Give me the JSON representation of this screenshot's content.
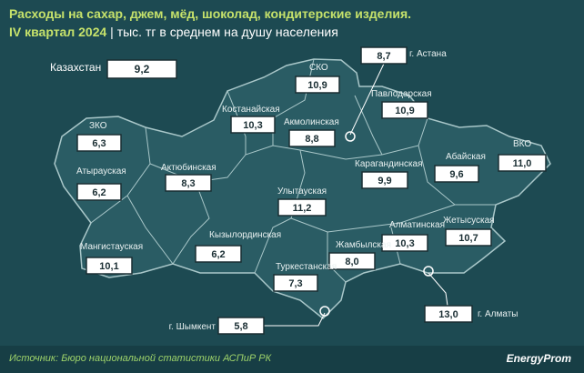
{
  "header": {
    "title": "Расходы на сахар, джем, мёд, шоколад, кондитерские изделия.",
    "period": "IV квартал 2024",
    "unit": "| тыс. тг в среднем на душу населения"
  },
  "regions": [
    {
      "name": "Казахстан",
      "value": "9,2"
    },
    {
      "name": "СКО",
      "value": "10,9"
    },
    {
      "name": "г. Астана",
      "value": "8,7"
    },
    {
      "name": "Павлодарская",
      "value": "10,9"
    },
    {
      "name": "Костанайская",
      "value": "10,3"
    },
    {
      "name": "Акмолинская",
      "value": "8,8"
    },
    {
      "name": "ЗКО",
      "value": "6,3"
    },
    {
      "name": "ВКО",
      "value": "11,0"
    },
    {
      "name": "Абайская",
      "value": "9,6"
    },
    {
      "name": "Карагандинская",
      "value": "9,9"
    },
    {
      "name": "Атырауская",
      "value": "6,2"
    },
    {
      "name": "Актюбинская",
      "value": "8,3"
    },
    {
      "name": "Улытауская",
      "value": "11,2"
    },
    {
      "name": "Жетысуская",
      "value": "10,7"
    },
    {
      "name": "Алматинская",
      "value": "10,3"
    },
    {
      "name": "Кызылординская",
      "value": "6,2"
    },
    {
      "name": "Мангистауская",
      "value": "10,1"
    },
    {
      "name": "Жамбылская",
      "value": "8,0"
    },
    {
      "name": "Туркестанская",
      "value": "7,3"
    },
    {
      "name": "г. Алматы",
      "value": "13,0"
    },
    {
      "name": "г. Шымкент",
      "value": "5,8"
    }
  ],
  "footer": {
    "source": "Источник: Бюро национальной статистики АСПиР РК",
    "logo": "EnergyProm"
  }
}
